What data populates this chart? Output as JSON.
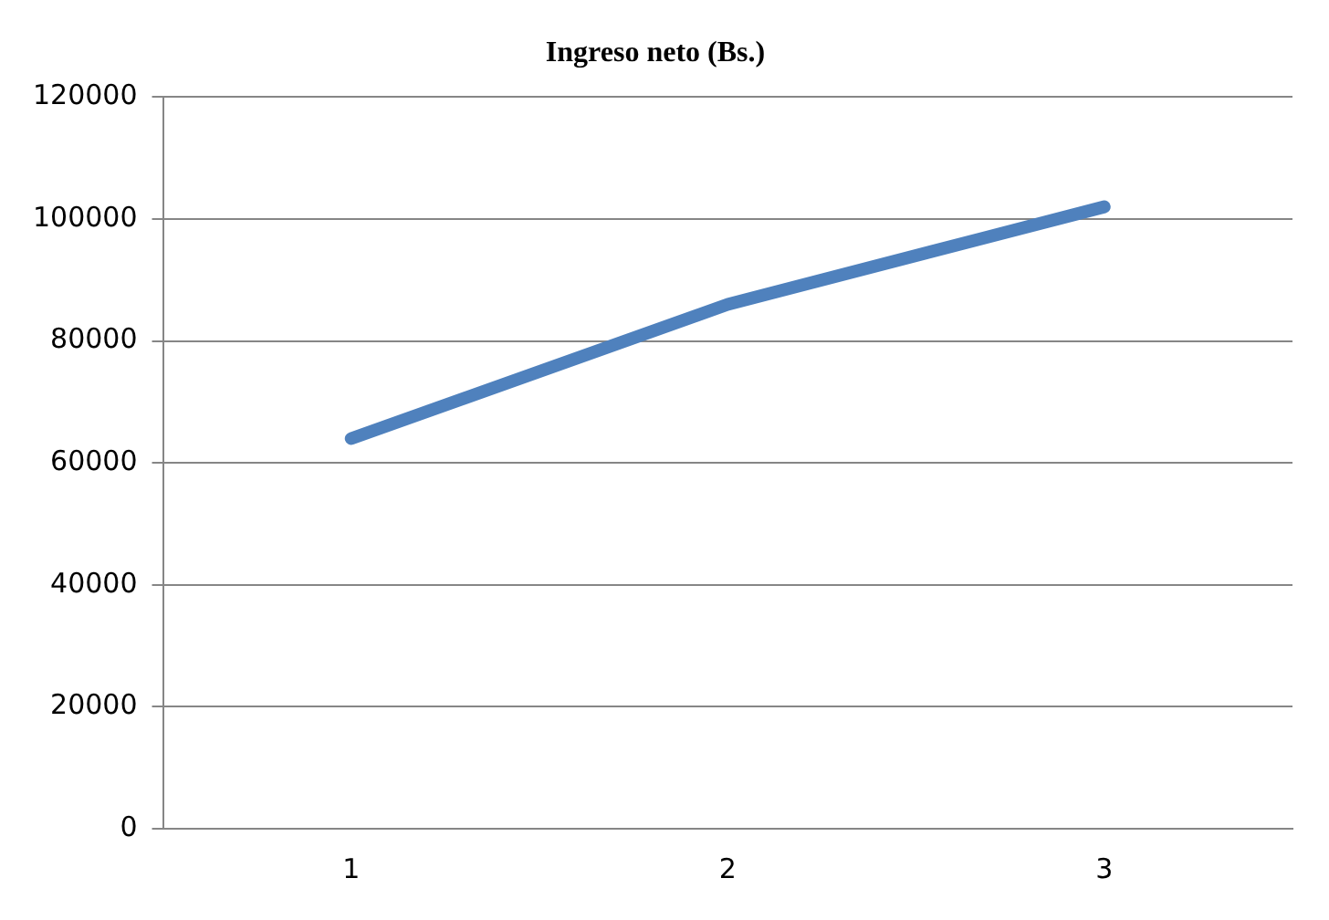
{
  "chart_data": {
    "type": "line",
    "title": "Ingreso neto (Bs.)",
    "categories": [
      "1",
      "2",
      "3"
    ],
    "series": [
      {
        "color": "#4f81bd",
        "values": [
          64000,
          86000,
          102000
        ]
      }
    ],
    "ylim": [
      0,
      120000
    ],
    "yticks": [
      0,
      20000,
      40000,
      60000,
      80000,
      100000,
      120000
    ],
    "grid": "y",
    "legend": false,
    "marker": "none"
  }
}
